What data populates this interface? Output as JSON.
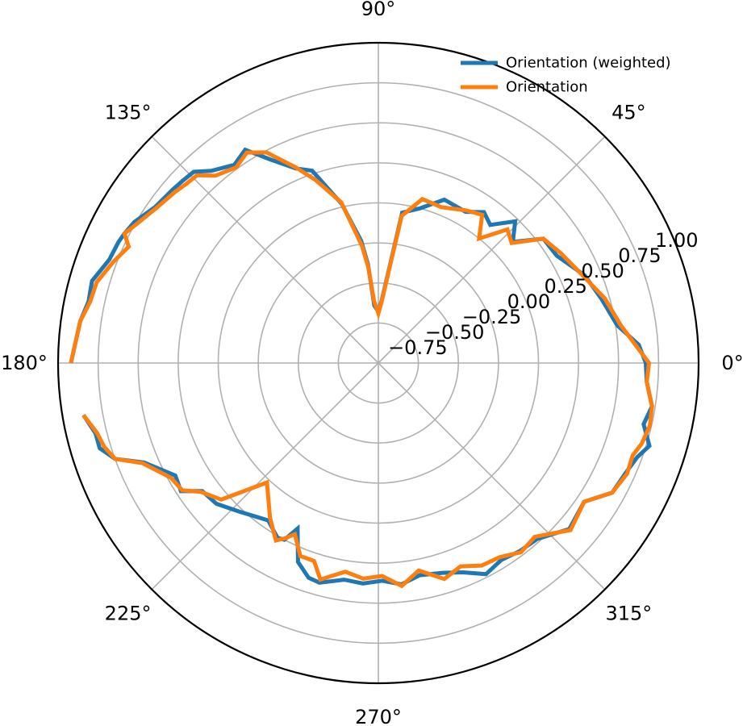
{
  "chart_data": {
    "type": "line",
    "projection": "polar",
    "theta_unit": "degrees",
    "theta_tick_labels": [
      "0°",
      "45°",
      "90°",
      "135°",
      "180°",
      "225°",
      "270°",
      "315°"
    ],
    "r_tick_labels": [
      "−0.75",
      "−0.50",
      "−0.25",
      "0.00",
      "0.25",
      "0.50",
      "0.75",
      "1.00"
    ],
    "rlim": [
      -1.0,
      1.0
    ],
    "r_ticks": [
      -0.75,
      -0.5,
      -0.25,
      0.0,
      0.25,
      0.5,
      0.75,
      1.0
    ],
    "r_label_angle": 22.5,
    "grid": true,
    "legend_position": "top-right",
    "series": [
      {
        "name": "Orientation (weighted)",
        "color": "#1f77b4",
        "theta": [
          180,
          172,
          168,
          164,
          159,
          155,
          153,
          150,
          145,
          140,
          137,
          134,
          131,
          126,
          122,
          118,
          113,
          109,
          103,
          98,
          96,
          94,
          90,
          87,
          81,
          75,
          68,
          60,
          55,
          51,
          46,
          42,
          37,
          31,
          23,
          16,
          9,
          4,
          0,
          -4,
          -9,
          -13,
          -17,
          -20,
          -24,
          -29,
          -34,
          -41,
          -48,
          -53,
          -58,
          -63,
          -68,
          -73,
          -79,
          -84,
          -89,
          -94,
          -99,
          -105,
          -108,
          -112,
          -116,
          -118,
          -120,
          -125,
          -133,
          -139,
          -144,
          -147,
          -151,
          -157,
          -160,
          -163,
          -166,
          -170
        ],
        "r": [
          0.92,
          0.88,
          0.85,
          0.86,
          0.8,
          0.79,
          0.78,
          0.76,
          0.7,
          0.68,
          0.67,
          0.66,
          0.59,
          0.53,
          0.57,
          0.44,
          0.32,
          0.27,
          0.02,
          -0.23,
          -0.38,
          -0.64,
          -0.68,
          -0.61,
          -0.05,
          0.0,
          0.1,
          0.09,
          0.15,
          0.11,
          0.23,
          0.13,
          0.29,
          0.3,
          0.4,
          0.45,
          0.51,
          0.63,
          0.67,
          0.68,
          0.73,
          0.7,
          0.77,
          0.72,
          0.69,
          0.67,
          0.55,
          0.58,
          0.48,
          0.47,
          0.45,
          0.48,
          0.41,
          0.37,
          0.35,
          0.39,
          0.36,
          0.38,
          0.37,
          0.42,
          0.41,
          0.34,
          0.15,
          0.25,
          0.26,
          0.2,
          0.27,
          0.34,
          0.36,
          0.47,
          0.45,
          0.59,
          0.75,
          0.82,
          0.82,
          0.87
        ]
      },
      {
        "name": "Orientation",
        "color": "#ff7f0e",
        "theta": [
          180,
          172,
          168,
          164,
          159,
          155,
          153,
          150,
          145,
          140,
          137,
          134,
          131,
          126,
          122,
          118,
          113,
          109,
          103,
          98,
          96,
          94,
          90,
          87,
          81,
          75,
          68,
          60,
          55,
          51,
          46,
          42,
          37,
          31,
          23,
          16,
          9,
          4,
          0,
          -4,
          -9,
          -13,
          -17,
          -20,
          -24,
          -29,
          -34,
          -41,
          -48,
          -53,
          -58,
          -63,
          -68,
          -73,
          -79,
          -84,
          -89,
          -94,
          -99,
          -105,
          -108,
          -112,
          -116,
          -118,
          -120,
          -125,
          -133,
          -139,
          -144,
          -147,
          -151,
          -157,
          -160,
          -163,
          -166,
          -170
        ],
        "r": [
          0.92,
          0.88,
          0.84,
          0.83,
          0.77,
          0.72,
          0.78,
          0.74,
          0.69,
          0.66,
          0.64,
          0.63,
          0.55,
          0.51,
          0.55,
          0.49,
          0.33,
          0.21,
          0.03,
          -0.26,
          -0.4,
          -0.61,
          -0.69,
          -0.62,
          -0.07,
          0.06,
          0.05,
          0.1,
          0.13,
          0.0,
          0.16,
          0.12,
          0.29,
          0.33,
          0.39,
          0.47,
          0.53,
          0.61,
          0.69,
          0.68,
          0.73,
          0.74,
          0.72,
          0.69,
          0.7,
          0.67,
          0.55,
          0.59,
          0.46,
          0.48,
          0.43,
          0.42,
          0.37,
          0.41,
          0.32,
          0.4,
          0.33,
          0.35,
          0.32,
          0.4,
          0.3,
          0.3,
          0.19,
          0.24,
          0.28,
          0.18,
          0.02,
          0.3,
          0.37,
          0.46,
          0.48,
          0.6,
          0.75,
          0.79,
          0.81,
          0.87
        ]
      }
    ]
  }
}
